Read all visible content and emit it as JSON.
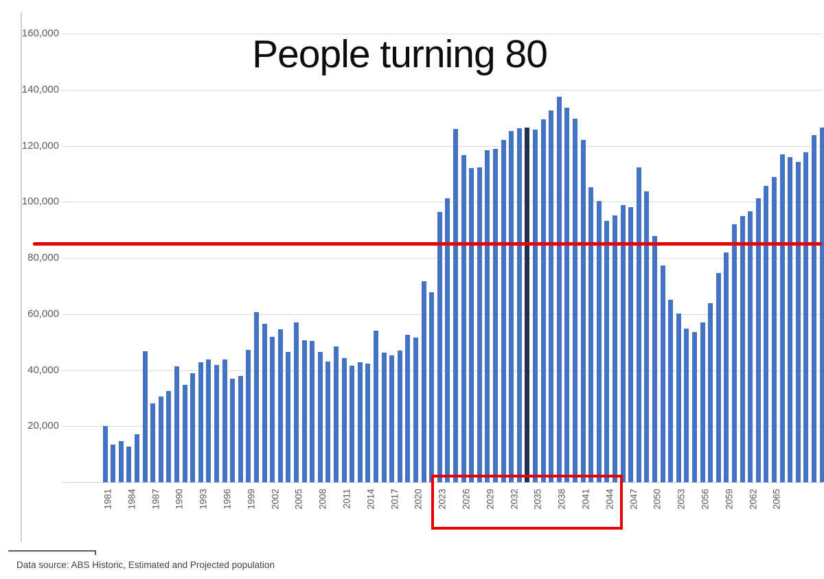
{
  "title": "People turning 80",
  "footer": {
    "data_source": "Data source: ABS Historic, Estimated and Projected population"
  },
  "chart_data": {
    "type": "bar",
    "title": "People turning 80",
    "xlabel": "",
    "ylabel": "",
    "ylim": [
      0,
      160000
    ],
    "ytick_step": 20000,
    "ytick_labels": [
      "20,000",
      "40,000",
      "60,000",
      "80,000",
      "100,000",
      "120,000",
      "140,000",
      "160,000"
    ],
    "grid": true,
    "legend": "none",
    "year_start": 1981,
    "year_end": 2071,
    "xtick_labels": [
      1981,
      1984,
      1987,
      1990,
      1993,
      1996,
      1999,
      2002,
      2005,
      2008,
      2011,
      2014,
      2017,
      2020,
      2023,
      2026,
      2029,
      2032,
      2035,
      2038,
      2041,
      2044,
      2047,
      2050,
      2053,
      2056,
      2059,
      2062,
      2065
    ],
    "values": [
      20000,
      13500,
      14700,
      12700,
      17200,
      46800,
      28200,
      30600,
      32600,
      41400,
      34800,
      39000,
      42800,
      43700,
      41900,
      43800,
      37000,
      38000,
      47300,
      60800,
      56500,
      51800,
      54500,
      46500,
      57100,
      50700,
      50300,
      46600,
      43100,
      48500,
      44400,
      41500,
      42900,
      42300,
      54000,
      46300,
      45200,
      47000,
      52500,
      51600,
      71700,
      67900,
      96300,
      101200,
      126100,
      116700,
      112000,
      112200,
      118300,
      118900,
      122200,
      125300,
      126200,
      126500,
      125800,
      129500,
      132600,
      137500,
      133600,
      129700,
      122000,
      105300,
      100200,
      93200,
      95300,
      98900,
      98200,
      112200,
      103700,
      87800,
      77300,
      65100,
      60200,
      54900,
      53600,
      56900,
      63900,
      74700,
      82000,
      92000,
      94900,
      96700,
      101200,
      105800,
      108900,
      116900,
      115900,
      114200,
      117700,
      123800,
      126500
    ],
    "bar_color": "#4472C4",
    "dark_bar_year": 2034,
    "dark_bar_color": "#1F3050",
    "reference_line": {
      "value": 85000,
      "color": "#E60000"
    },
    "highlight_box": {
      "from_year": 2023,
      "to_year": 2044,
      "color": "#E60000"
    }
  }
}
